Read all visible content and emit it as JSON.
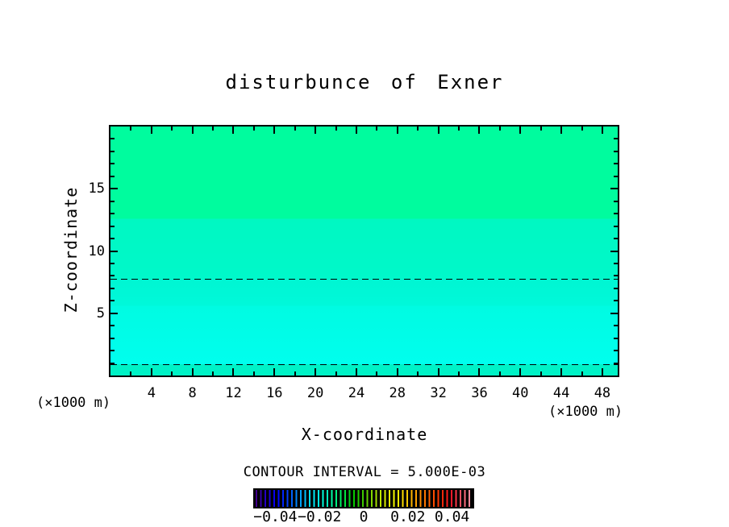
{
  "colors": {
    "background": "#ffffff",
    "text": "#000000",
    "plot_border": "#000000"
  },
  "chart_data": {
    "type": "heatmap",
    "title": "disturbunce of Exner",
    "xlabel": "X-coordinate",
    "ylabel": "Z-coordinate",
    "x_axis_unit": "(×1000 m)",
    "y_axis_unit": "(×1000 m)",
    "xlim": [
      0,
      49.5
    ],
    "ylim": [
      0,
      20
    ],
    "x_major_ticks": [
      4,
      8,
      12,
      16,
      20,
      24,
      28,
      32,
      36,
      40,
      44,
      48
    ],
    "x_minor_ticks": [
      2,
      6,
      10,
      14,
      18,
      22,
      26,
      30,
      34,
      38,
      42,
      46
    ],
    "y_major_ticks": [
      5,
      10,
      15
    ],
    "y_minor_ticks": [
      1,
      2,
      3,
      4,
      6,
      7,
      8,
      9,
      11,
      12,
      13,
      14,
      16,
      17,
      18,
      19
    ],
    "grid": false,
    "contour_interval_text": "CONTOUR INTERVAL = 5.000E-03",
    "contour_interval": 0.005,
    "dashed_contour_levels_z": [
      7.75,
      0.9
    ],
    "field_bands": [
      {
        "z_top": 20,
        "z_bottom": 12.6,
        "color_top": "#00fc9e",
        "color_bottom": "#00fc9e"
      },
      {
        "z_top": 12.6,
        "z_bottom": 7.75,
        "color_top": "#00f8c2",
        "color_bottom": "#00f8ca"
      },
      {
        "z_top": 7.75,
        "z_bottom": 5.6,
        "color_top": "#00f6d2",
        "color_bottom": "#00f8da"
      },
      {
        "z_top": 5.6,
        "z_bottom": 0.9,
        "color_top": "#00fbe2",
        "color_bottom": "#00ffee"
      },
      {
        "z_top": 0.9,
        "z_bottom": 0,
        "color_top": "#00f2c6",
        "color_bottom": "#00f2c6"
      }
    ],
    "colorbar": {
      "min": -0.05,
      "max": 0.05,
      "ticks": [
        {
          "value": -0.04,
          "label": "−0.04"
        },
        {
          "value": -0.02,
          "label": "−0.02"
        },
        {
          "value": 0,
          "label": "0"
        },
        {
          "value": 0.02,
          "label": "0.02"
        },
        {
          "value": 0.04,
          "label": "0.04"
        }
      ],
      "spectrum": [
        "#440088",
        "#2200cc",
        "#0000ff",
        "#0044ff",
        "#0099ff",
        "#00ddff",
        "#00ffee",
        "#00ffaa",
        "#00ee55",
        "#00cc00",
        "#44cc00",
        "#99dd00",
        "#ddee00",
        "#ffff00",
        "#ffcc00",
        "#ff9900",
        "#ff6600",
        "#ff3300",
        "#ff1122",
        "#ff5566",
        "#ff99aa"
      ],
      "legend_position": "bottom"
    }
  }
}
